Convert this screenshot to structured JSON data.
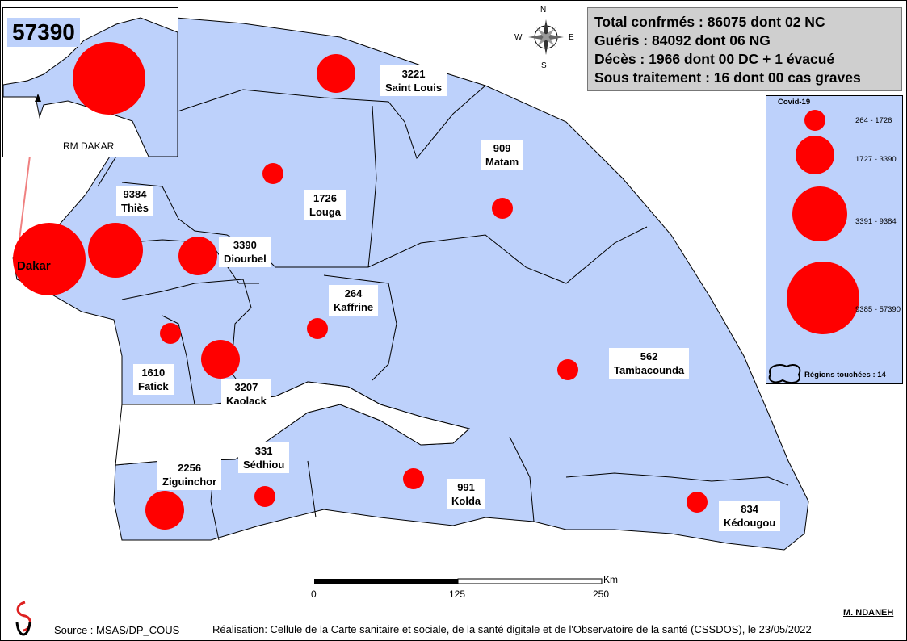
{
  "colors": {
    "land": "#bdd1fb",
    "circle": "#ff0000",
    "stats_bg": "#cfcfcf",
    "leader": "#f08080"
  },
  "inset": {
    "total": "57390",
    "label": "RM DAKAR"
  },
  "stats": [
    "Total confrmés : 86075 dont 02 NC",
    "Guéris : 84092 dont 06 NG",
    "Décès : 1966 dont 00 DC + 1 évacué",
    "Sous traitement : 16 dont 00 cas graves"
  ],
  "compass": {
    "n": "N",
    "s": "S",
    "e": "E",
    "w": "W"
  },
  "legend": {
    "title": "Covid-19",
    "classes": [
      "264 - 1726",
      "1727 - 3390",
      "3391 - 9384",
      "9385 - 57390"
    ],
    "regions": "Régions touchées : 14"
  },
  "regions": [
    {
      "name": "Dakar",
      "cases": ""
    },
    {
      "name": "Thiès",
      "cases": "9384"
    },
    {
      "name": "Diourbel",
      "cases": "3390"
    },
    {
      "name": "Louga",
      "cases": "1726"
    },
    {
      "name": "Saint Louis",
      "cases": "3221"
    },
    {
      "name": "Matam",
      "cases": "909"
    },
    {
      "name": "Kaffrine",
      "cases": "264"
    },
    {
      "name": "Fatick",
      "cases": "1610"
    },
    {
      "name": "Kaolack",
      "cases": "3207"
    },
    {
      "name": "Tambacounda",
      "cases": "562"
    },
    {
      "name": "Ziguinchor",
      "cases": "2256"
    },
    {
      "name": "Sédhiou",
      "cases": "331"
    },
    {
      "name": "Kolda",
      "cases": "991"
    },
    {
      "name": "Kédougou",
      "cases": "834"
    }
  ],
  "scalebar": {
    "unit": "Km",
    "ticks": [
      "0",
      "125",
      "250"
    ]
  },
  "footer": {
    "author": "M. NDANEH",
    "source": "Source : MSAS/DP_COUS",
    "credit": "Réalisation: Cellule de la Carte sanitaire et sociale, de la santé digitale et de l'Observatoire de la santé (CSSDOS), le 23/05/2022"
  }
}
